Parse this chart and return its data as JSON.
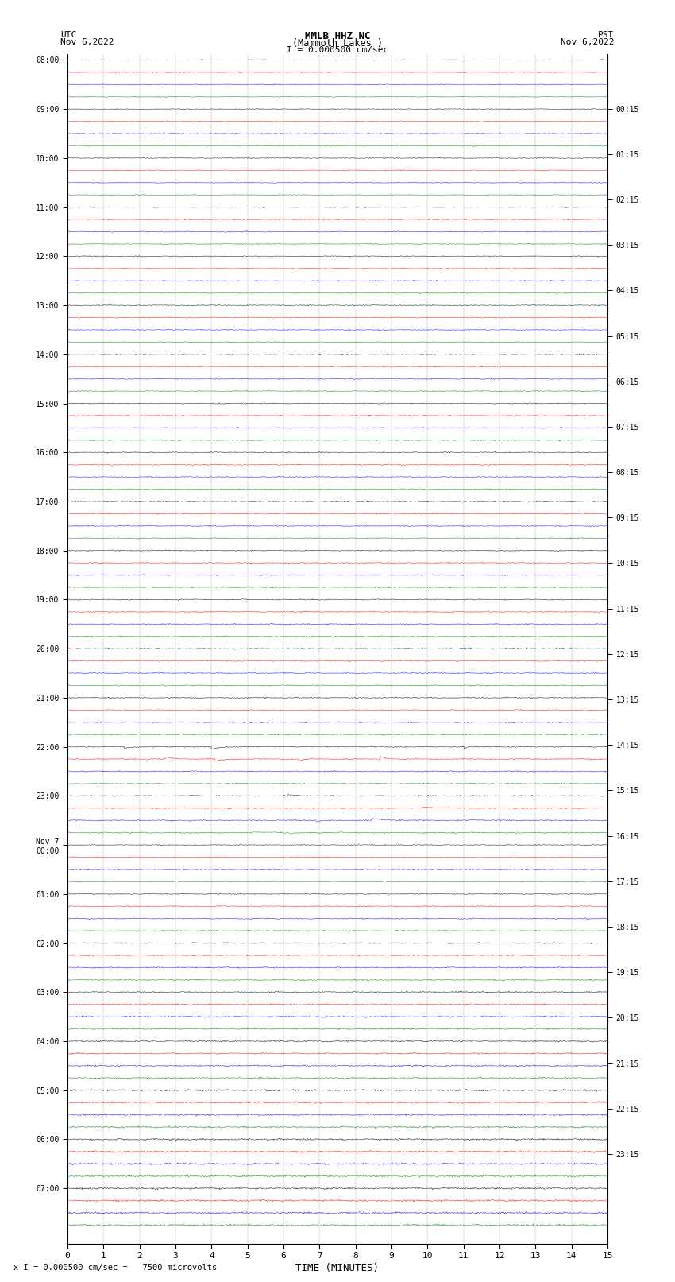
{
  "title_line1": "MMLB HHZ NC",
  "title_line2": "(Mammoth Lakes )",
  "scale_label": "I = 0.000500 cm/sec",
  "left_header": "UTC\nNov 6,2022",
  "right_header": "PST\nNov 6,2022",
  "bottom_note": "x I = 0.000500 cm/sec =   7500 microvolts",
  "xlabel": "TIME (MINUTES)",
  "left_times_major": [
    "08:00",
    "09:00",
    "10:00",
    "11:00",
    "12:00",
    "13:00",
    "14:00",
    "15:00",
    "16:00",
    "17:00",
    "18:00",
    "19:00",
    "20:00",
    "21:00",
    "22:00",
    "23:00",
    "Nov 7\n00:00",
    "01:00",
    "02:00",
    "03:00",
    "04:00",
    "05:00",
    "06:00",
    "07:00"
  ],
  "right_times_major": [
    "00:15",
    "01:15",
    "02:15",
    "03:15",
    "04:15",
    "05:15",
    "06:15",
    "07:15",
    "08:15",
    "09:15",
    "10:15",
    "11:15",
    "12:15",
    "13:15",
    "14:15",
    "15:15",
    "16:15",
    "17:15",
    "18:15",
    "19:15",
    "20:15",
    "21:15",
    "22:15",
    "23:15"
  ],
  "colors": [
    "black",
    "red",
    "blue",
    "green"
  ],
  "n_rows": 96,
  "n_hours": 24,
  "traces_per_hour": 4,
  "time_minutes": 15,
  "background_color": "white",
  "amplitude_early": 0.28,
  "amplitude_late": 0.45,
  "noise_base_early": 0.08,
  "noise_base_late": 0.18,
  "seed": 42,
  "event_row_22": 56,
  "event_row_23": 60,
  "transition_row": 64
}
